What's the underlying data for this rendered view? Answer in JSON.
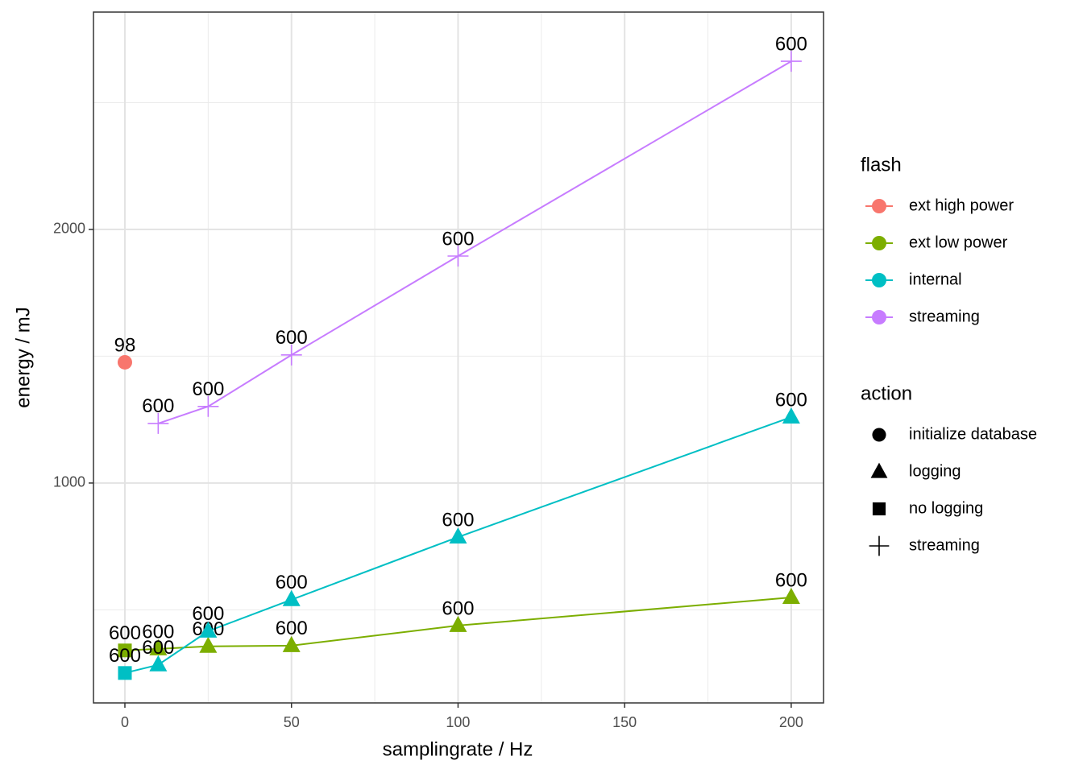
{
  "chart_data": {
    "type": "line",
    "x_label": "samplingrate / Hz",
    "y_label": "energy / mJ",
    "xlim": [
      -9.43,
      209.7
    ],
    "ylim": [
      133,
      2857
    ],
    "xticks": [
      0,
      50,
      100,
      150,
      200
    ],
    "yticks": [
      1000,
      2000
    ],
    "xminor": [
      25,
      75,
      125,
      175
    ],
    "yminor": [
      500,
      1500,
      2500
    ],
    "grid": true,
    "color_legend_title": "flash",
    "shape_legend_title": "action",
    "actions": [
      {
        "name": "initialize database",
        "shape": "circle"
      },
      {
        "name": "logging",
        "shape": "triangle"
      },
      {
        "name": "no logging",
        "shape": "square"
      },
      {
        "name": "streaming",
        "shape": "plus"
      }
    ],
    "series": [
      {
        "name": "ext high power",
        "color": "#f8766d",
        "x": [
          0
        ],
        "values": [
          1476
        ],
        "action": [
          0
        ],
        "n": [
          98
        ]
      },
      {
        "name": "ext low power",
        "color": "#7cae00",
        "x": [
          0,
          10,
          25,
          50,
          100,
          200
        ],
        "values": [
          340,
          346,
          356,
          359,
          438,
          549
        ],
        "action": [
          2,
          1,
          1,
          1,
          1,
          1
        ],
        "n": [
          600,
          600,
          600,
          600,
          600,
          600
        ]
      },
      {
        "name": "internal",
        "color": "#00bfc4",
        "x": [
          0,
          10,
          25,
          50,
          100,
          200
        ],
        "values": [
          251,
          283,
          416,
          540,
          787,
          1260
        ],
        "action": [
          2,
          1,
          1,
          1,
          1,
          1
        ],
        "n": [
          600,
          600,
          600,
          600,
          600,
          600
        ]
      },
      {
        "name": "streaming",
        "color": "#c77cff",
        "x": [
          10,
          25,
          50,
          100,
          200
        ],
        "values": [
          1235,
          1302,
          1505,
          1895,
          2663
        ],
        "action": [
          3,
          3,
          3,
          3,
          3
        ],
        "n": [
          600,
          600,
          600,
          600,
          600
        ]
      }
    ]
  }
}
